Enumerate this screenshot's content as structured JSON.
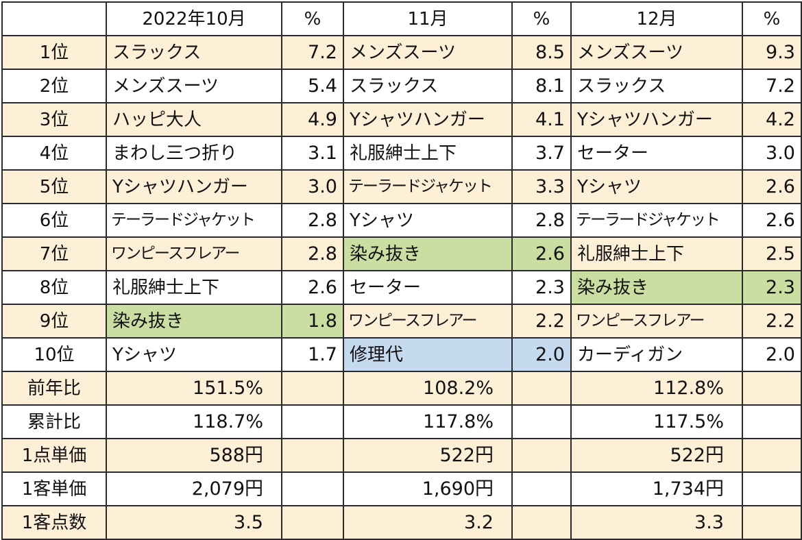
{
  "header": [
    "",
    "2022年10月",
    "%",
    "11月",
    "%",
    "12月",
    "%"
  ],
  "rankings": [
    {
      "rank": "1位",
      "oct": {
        "item": "スラックス",
        "pct": "7.2"
      },
      "nov": {
        "item": "メンズスーツ",
        "pct": "8.5"
      },
      "dec": {
        "item": "メンズスーツ",
        "pct": "9.3"
      }
    },
    {
      "rank": "2位",
      "oct": {
        "item": "メンズスーツ",
        "pct": "5.4"
      },
      "nov": {
        "item": "スラックス",
        "pct": "8.1"
      },
      "dec": {
        "item": "スラックス",
        "pct": "7.2"
      }
    },
    {
      "rank": "3位",
      "oct": {
        "item": "ハッピ大人",
        "pct": "4.9"
      },
      "nov": {
        "item": "Yシャツハンガー",
        "pct": "4.1"
      },
      "dec": {
        "item": "Yシャツハンガー",
        "pct": "4.2"
      }
    },
    {
      "rank": "4位",
      "oct": {
        "item": "まわし三つ折り",
        "pct": "3.1"
      },
      "nov": {
        "item": "礼服紳士上下",
        "pct": "3.7"
      },
      "dec": {
        "item": "セーター",
        "pct": "3.0"
      }
    },
    {
      "rank": "5位",
      "oct": {
        "item": "Yシャツハンガー",
        "pct": "3.0"
      },
      "nov": {
        "item": "テーラードジャケット",
        "pct": "3.3"
      },
      "dec": {
        "item": "Yシャツ",
        "pct": "2.6"
      }
    },
    {
      "rank": "6位",
      "oct": {
        "item": "テーラードジャケット",
        "pct": "2.8"
      },
      "nov": {
        "item": "Yシャツ",
        "pct": "2.8"
      },
      "dec": {
        "item": "テーラードジャケット",
        "pct": "2.6"
      }
    },
    {
      "rank": "7位",
      "oct": {
        "item": "ワンピースフレアー",
        "pct": "2.8"
      },
      "nov": {
        "item": "染み抜き",
        "pct": "2.6"
      },
      "dec": {
        "item": "礼服紳士上下",
        "pct": "2.5"
      }
    },
    {
      "rank": "8位",
      "oct": {
        "item": "礼服紳士上下",
        "pct": "2.6"
      },
      "nov": {
        "item": "セーター",
        "pct": "2.3"
      },
      "dec": {
        "item": "染み抜き",
        "pct": "2.3"
      }
    },
    {
      "rank": "9位",
      "oct": {
        "item": "染み抜き",
        "pct": "1.8"
      },
      "nov": {
        "item": "ワンピースフレアー",
        "pct": "2.2"
      },
      "dec": {
        "item": "ワンピースフレアー",
        "pct": "2.2"
      }
    },
    {
      "rank": "10位",
      "oct": {
        "item": "Yシャツ",
        "pct": "1.7"
      },
      "nov": {
        "item": "修理代",
        "pct": "2.0"
      },
      "dec": {
        "item": "カーディガン",
        "pct": "2.0"
      }
    }
  ],
  "summary": [
    {
      "label": "前年比",
      "oct": "151.5%",
      "nov": "108.2%",
      "dec": "112.8%"
    },
    {
      "label": "累計比",
      "oct": "118.7%",
      "nov": "117.8%",
      "dec": "117.5%"
    },
    {
      "label": "1点単価",
      "oct": "588円",
      "nov": "522円",
      "dec": "522円"
    },
    {
      "label": "1客単価",
      "oct": "2,079円",
      "nov": "1,690円",
      "dec": "1,734円"
    },
    {
      "label": "1客点数",
      "oct": "3.5",
      "nov": "3.2",
      "dec": "3.3"
    }
  ],
  "highlight_colors": {
    "row_tint": "#fdf0d6",
    "stain_removal_green": "#c9dea0",
    "repair_blue": "#c5d9ef"
  }
}
